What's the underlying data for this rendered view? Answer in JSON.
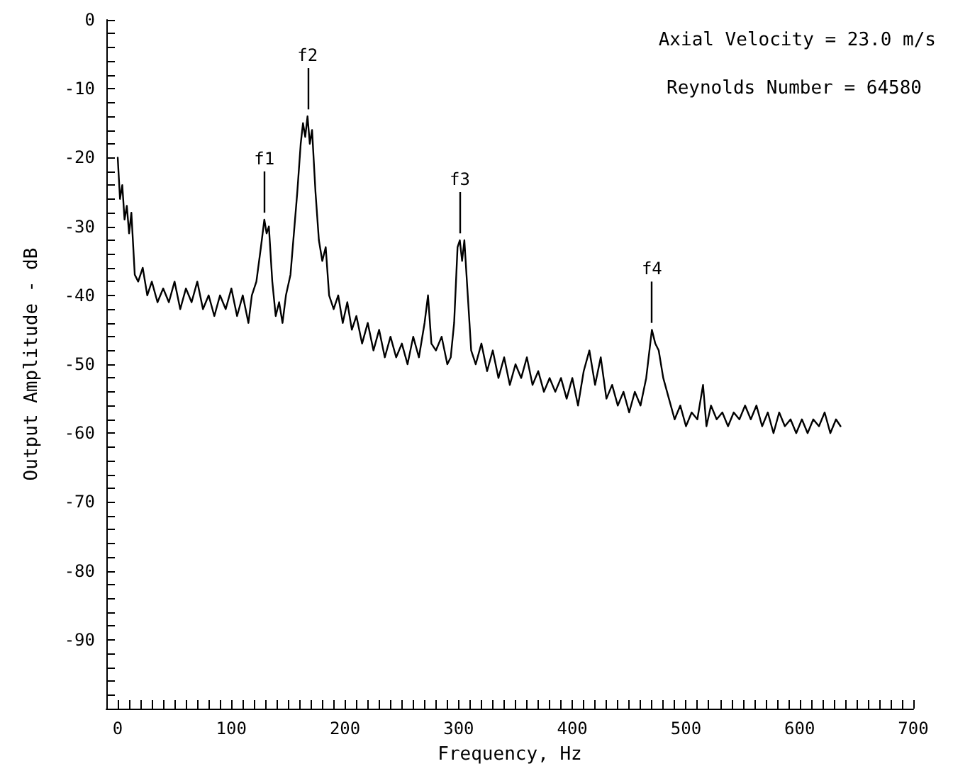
{
  "chart_data": {
    "type": "line",
    "xlabel": "Frequency, Hz",
    "ylabel": "Output Amplitude - dB",
    "annotations": [
      "Axial Velocity = 23.0 m/s",
      "Reynolds Number = 64580",
      {
        "text": "f1",
        "x": 129,
        "y": -29
      },
      {
        "text": "f2",
        "x": 167,
        "y": -14
      },
      {
        "text": "f3",
        "x": 301,
        "y": -32
      },
      {
        "text": "f4",
        "x": 470,
        "y": -45
      }
    ],
    "x": [
      0,
      2,
      4,
      6,
      8,
      10,
      12,
      15,
      18,
      22,
      26,
      30,
      35,
      40,
      45,
      50,
      55,
      60,
      65,
      70,
      75,
      80,
      85,
      90,
      95,
      100,
      105,
      110,
      115,
      118,
      122,
      126,
      129,
      131,
      133,
      136,
      139,
      142,
      145,
      148,
      152,
      155,
      158,
      161,
      163,
      165,
      167,
      169,
      171,
      174,
      177,
      180,
      183,
      186,
      190,
      194,
      198,
      202,
      206,
      210,
      215,
      220,
      225,
      230,
      235,
      240,
      245,
      250,
      255,
      260,
      265,
      270,
      273,
      276,
      280,
      285,
      290,
      293,
      296,
      299,
      301,
      303,
      305,
      308,
      311,
      315,
      320,
      325,
      330,
      335,
      340,
      345,
      350,
      355,
      360,
      365,
      370,
      375,
      380,
      385,
      390,
      395,
      400,
      405,
      410,
      415,
      420,
      425,
      430,
      435,
      440,
      445,
      450,
      455,
      460,
      465,
      470,
      473,
      476,
      480,
      485,
      490,
      495,
      500,
      505,
      510,
      515,
      518,
      522,
      527,
      532,
      537,
      542,
      547,
      552,
      557,
      562,
      567,
      572,
      577,
      582,
      587,
      592,
      597,
      602,
      607,
      612,
      617,
      622,
      627,
      632,
      636
    ],
    "values": [
      -20,
      -26,
      -24,
      -29,
      -27,
      -31,
      -28,
      -37,
      -38,
      -36,
      -40,
      -38,
      -41,
      -39,
      -41,
      -38,
      -42,
      -39,
      -41,
      -38,
      -42,
      -40,
      -43,
      -40,
      -42,
      -39,
      -43,
      -40,
      -44,
      -40,
      -38,
      -33,
      -29,
      -31,
      -30,
      -38,
      -43,
      -41,
      -44,
      -40,
      -37,
      -31,
      -25,
      -18,
      -15,
      -17,
      -14,
      -18,
      -16,
      -25,
      -32,
      -35,
      -33,
      -40,
      -42,
      -40,
      -44,
      -41,
      -45,
      -43,
      -47,
      -44,
      -48,
      -45,
      -49,
      -46,
      -49,
      -47,
      -50,
      -46,
      -49,
      -44,
      -40,
      -47,
      -48,
      -46,
      -50,
      -49,
      -44,
      -33,
      -32,
      -35,
      -32,
      -40,
      -48,
      -50,
      -47,
      -51,
      -48,
      -52,
      -49,
      -53,
      -50,
      -52,
      -49,
      -53,
      -51,
      -54,
      -52,
      -54,
      -52,
      -55,
      -52,
      -56,
      -51,
      -48,
      -53,
      -49,
      -55,
      -53,
      -56,
      -54,
      -57,
      -54,
      -56,
      -52,
      -45,
      -47,
      -48,
      -52,
      -55,
      -58,
      -56,
      -59,
      -57,
      -58,
      -53,
      -59,
      -56,
      -58,
      -57,
      -59,
      -57,
      -58,
      -56,
      -58,
      -56,
      -59,
      -57,
      -60,
      -57,
      -59,
      -58,
      -60,
      -58,
      -60,
      -58,
      -59,
      -57,
      -60,
      -58,
      -59
    ],
    "color": "#000000",
    "line_style": "solid",
    "marker": "none",
    "grid": false,
    "xlim": [
      -10,
      700
    ],
    "xticks": [
      0,
      {
        "value": 10,
        "label": null
      },
      {
        "value": 20,
        "label": null
      },
      {
        "value": 30,
        "label": null
      },
      {
        "value": 40,
        "label": null
      },
      {
        "value": 50,
        "label": null
      },
      {
        "value": 60,
        "label": null
      },
      {
        "value": 70,
        "label": null
      },
      {
        "value": 80,
        "label": null
      },
      {
        "value": 90,
        "label": null
      },
      100,
      {
        "value": 110,
        "label": null
      },
      {
        "value": 120,
        "label": null
      },
      {
        "value": 130,
        "label": null
      },
      {
        "value": 140,
        "label": null
      },
      {
        "value": 150,
        "label": null
      },
      {
        "value": 160,
        "label": null
      },
      {
        "value": 170,
        "label": null
      },
      {
        "value": 180,
        "label": null
      },
      {
        "value": 190,
        "label": null
      },
      200,
      {
        "value": 210,
        "label": null
      },
      {
        "value": 220,
        "label": null
      },
      {
        "value": 230,
        "label": null
      },
      {
        "value": 240,
        "label": null
      },
      {
        "value": 250,
        "label": null
      },
      {
        "value": 260,
        "label": null
      },
      {
        "value": 270,
        "label": null
      },
      {
        "value": 280,
        "label": null
      },
      {
        "value": 290,
        "label": null
      },
      300,
      {
        "value": 310,
        "label": null
      },
      {
        "value": 320,
        "label": null
      },
      {
        "value": 330,
        "label": null
      },
      {
        "value": 340,
        "label": null
      },
      {
        "value": 350,
        "label": null
      },
      {
        "value": 360,
        "label": null
      },
      {
        "value": 370,
        "label": null
      },
      {
        "value": 380,
        "label": null
      },
      {
        "value": 390,
        "label": null
      },
      400,
      {
        "value": 410,
        "label": null
      },
      {
        "value": 420,
        "label": null
      },
      {
        "value": 430,
        "label": null
      },
      {
        "value": 440,
        "label": null
      },
      {
        "value": 450,
        "label": null
      },
      {
        "value": 460,
        "label": null
      },
      {
        "value": 470,
        "label": null
      },
      {
        "value": 480,
        "label": null
      },
      {
        "value": 490,
        "label": null
      },
      500,
      {
        "value": 510,
        "label": null
      },
      {
        "value": 520,
        "label": null
      },
      {
        "value": 530,
        "label": null
      },
      {
        "value": 540,
        "label": null
      },
      {
        "value": 550,
        "label": null
      },
      {
        "value": 560,
        "label": null
      },
      {
        "value": 570,
        "label": null
      },
      {
        "value": 580,
        "label": null
      },
      {
        "value": 590,
        "label": null
      },
      600,
      {
        "value": 610,
        "label": null
      },
      {
        "value": 620,
        "label": null
      },
      {
        "value": 630,
        "label": null
      },
      {
        "value": 640,
        "label": null
      },
      {
        "value": 650,
        "label": null
      },
      {
        "value": 660,
        "label": null
      },
      {
        "value": 670,
        "label": null
      },
      {
        "value": 680,
        "label": null
      },
      {
        "value": 690,
        "label": null
      },
      700
    ],
    "ylim": [
      -100,
      0
    ],
    "yticks": [
      0,
      {
        "value": -2,
        "label": null
      },
      {
        "value": -4,
        "label": null
      },
      {
        "value": -6,
        "label": null
      },
      {
        "value": -8,
        "label": null
      },
      -10,
      {
        "value": -12,
        "label": null
      },
      {
        "value": -14,
        "label": null
      },
      {
        "value": -16,
        "label": null
      },
      {
        "value": -18,
        "label": null
      },
      -20,
      {
        "value": -22,
        "label": null
      },
      {
        "value": -24,
        "label": null
      },
      {
        "value": -26,
        "label": null
      },
      {
        "value": -28,
        "label": null
      },
      -30,
      {
        "value": -32,
        "label": null
      },
      {
        "value": -34,
        "label": null
      },
      {
        "value": -36,
        "label": null
      },
      {
        "value": -38,
        "label": null
      },
      -40,
      {
        "value": -42,
        "label": null
      },
      {
        "value": -44,
        "label": null
      },
      {
        "value": -46,
        "label": null
      },
      {
        "value": -48,
        "label": null
      },
      -50,
      {
        "value": -52,
        "label": null
      },
      {
        "value": -54,
        "label": null
      },
      {
        "value": -56,
        "label": null
      },
      {
        "value": -58,
        "label": null
      },
      -60,
      {
        "value": -62,
        "label": null
      },
      {
        "value": -64,
        "label": null
      },
      {
        "value": -66,
        "label": null
      },
      {
        "value": -68,
        "label": null
      },
      -70,
      {
        "value": -72,
        "label": null
      },
      {
        "value": -74,
        "label": null
      },
      {
        "value": -76,
        "label": null
      },
      {
        "value": -78,
        "label": null
      },
      -80,
      {
        "value": -82,
        "label": null
      },
      {
        "value": -84,
        "label": null
      },
      {
        "value": -86,
        "label": null
      },
      {
        "value": -88,
        "label": null
      },
      -90,
      {
        "value": -92,
        "label": null
      },
      {
        "value": -94,
        "label": null
      },
      {
        "value": -96,
        "label": null
      },
      {
        "value": -98,
        "label": null
      },
      {
        "value": -100,
        "label": null
      }
    ]
  }
}
